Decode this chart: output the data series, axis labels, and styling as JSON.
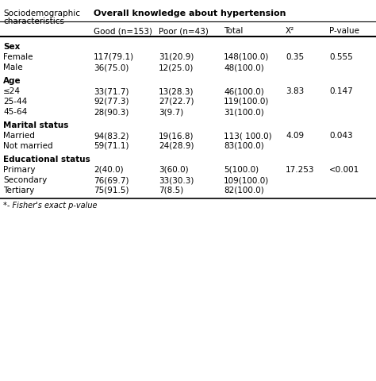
{
  "title_line1": "Sociodemographic",
  "title_line2": "characteristics",
  "header_main": "Overall knowledge about hypertension",
  "col_headers": [
    "Good (n=153)",
    "Poor (n=43)",
    "Total",
    "X²",
    "P-value"
  ],
  "sections": [
    {
      "label": "Sex",
      "bold": true,
      "rows": [
        [
          "Female",
          "117(79.1)",
          "31(20.9)",
          "148(100.0)",
          "0.35",
          "0.555"
        ],
        [
          "Male",
          "36(75.0)",
          "12(25.0)",
          "48(100.0)",
          "",
          ""
        ]
      ]
    },
    {
      "label": "Age",
      "bold": true,
      "rows": [
        [
          "≤24",
          "33(71.7)",
          "13(28.3)",
          "46(100.0)",
          "3.83",
          "0.147"
        ],
        [
          "25-44",
          "92(77.3)",
          "27(22.7)",
          "119(100.0)",
          "",
          ""
        ],
        [
          "45-64",
          "28(90.3)",
          "3(9.7)",
          "31(100.0)",
          "",
          ""
        ]
      ]
    },
    {
      "label": "Marital status",
      "bold": true,
      "rows": [
        [
          "Married",
          "94(83.2)",
          "19(16.8)",
          "113( 100.0)",
          "4.09",
          "0.043"
        ],
        [
          "Not married",
          "59(71.1)",
          "24(28.9)",
          "83(100.0)",
          "",
          ""
        ]
      ]
    },
    {
      "label": "Educational status",
      "bold": true,
      "rows": [
        [
          "Primary",
          "2(40.0)",
          "3(60.0)",
          "5(100.0)",
          "17.253",
          "<0.001"
        ],
        [
          "Secondary",
          "76(69.7)",
          "33(30.3)",
          "109(100.0)",
          "",
          ""
        ],
        [
          "Tertiary",
          "75(91.5)",
          "7(8.5)",
          "82(100.0)",
          "",
          ""
        ]
      ]
    }
  ],
  "footnote": "*- Fisher's exact p-value",
  "bg_color": "#ffffff",
  "text_color": "#000000",
  "line_color": "#000000"
}
